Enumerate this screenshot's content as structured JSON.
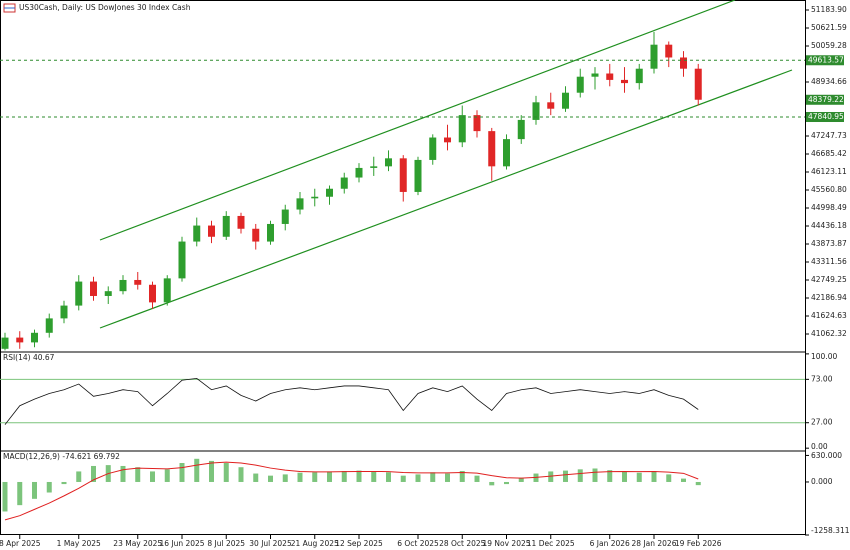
{
  "chart_data": [
    {
      "type": "candlestick",
      "title": "US30Cash, Daily: US DowJones 30 Index Cash",
      "up_color": "#2e9e2e",
      "down_color": "#e02626",
      "axis_color": "#2e8b2e",
      "categories": [
        null,
        "8 Apr 2025",
        null,
        null,
        null,
        "1 May 2025",
        null,
        null,
        null,
        "23 May 2025",
        null,
        null,
        "16 Jun 2025",
        null,
        null,
        "8 Jul 2025",
        null,
        null,
        "30 Jul 2025",
        null,
        null,
        "21 Aug 2025",
        null,
        null,
        "12 Sep 2025",
        null,
        null,
        null,
        "6 Oct 2025",
        null,
        null,
        "28 Oct 2025",
        null,
        null,
        "19 Nov 2025",
        null,
        null,
        "11 Dec 2025",
        null,
        null,
        null,
        "6 Jan 2026",
        null,
        null,
        "28 Jan 2026",
        null,
        null,
        "19 Feb 2026"
      ],
      "open": [
        40600,
        40950,
        40800,
        41100,
        41550,
        41950,
        42700,
        42250,
        42400,
        42750,
        42600,
        42050,
        42800,
        43950,
        44450,
        44100,
        44750,
        44350,
        43950,
        44500,
        44950,
        45300,
        45350,
        45600,
        45950,
        46250,
        46300,
        46550,
        45500,
        46500,
        47200,
        47050,
        47900,
        47400,
        46300,
        47150,
        47750,
        48300,
        48100,
        48600,
        49100,
        49200,
        49000,
        48900,
        49350,
        50100,
        49700,
        49350
      ],
      "high": [
        41100,
        41150,
        41200,
        41700,
        42100,
        42900,
        42850,
        42550,
        42900,
        43000,
        42700,
        42900,
        44100,
        44700,
        44600,
        44900,
        44850,
        44500,
        44600,
        45100,
        45500,
        45600,
        45700,
        46100,
        46400,
        46600,
        46800,
        46650,
        46600,
        47300,
        47600,
        48200,
        48050,
        47500,
        47300,
        47900,
        48500,
        48600,
        48800,
        49350,
        49400,
        49500,
        49400,
        49500,
        50500,
        50200,
        49900,
        49500
      ],
      "low": [
        40550,
        40600,
        40650,
        40950,
        41400,
        41800,
        42100,
        42000,
        42300,
        42450,
        41850,
        41950,
        42700,
        43800,
        43900,
        44000,
        44200,
        43700,
        43850,
        44300,
        44800,
        45050,
        45100,
        45450,
        45800,
        46000,
        46150,
        45200,
        45400,
        46350,
        46800,
        46900,
        47200,
        45850,
        46200,
        47000,
        47600,
        47900,
        48000,
        48450,
        48700,
        48800,
        48600,
        48700,
        49200,
        49400,
        49100,
        48200
      ],
      "close": [
        40950,
        40800,
        41100,
        41550,
        41950,
        42700,
        42250,
        42400,
        42750,
        42600,
        42050,
        42800,
        43950,
        44450,
        44100,
        44750,
        44350,
        43950,
        44500,
        44950,
        45300,
        45350,
        45600,
        45950,
        46250,
        46300,
        46550,
        45500,
        46500,
        47200,
        47050,
        47900,
        47400,
        46300,
        47150,
        47750,
        48300,
        48100,
        48600,
        49100,
        49200,
        49000,
        48900,
        49350,
        50100,
        49700,
        49350,
        48380
      ],
      "ylim": [
        40500,
        51496
      ],
      "yticks": [
        {
          "value": 51183.9,
          "label": "51183.90"
        },
        {
          "value": 50621.59,
          "label": "50621.59"
        },
        {
          "value": 50059.28,
          "label": "50059.28"
        },
        {
          "value": 48934.66,
          "label": "48934.66"
        },
        {
          "value": 47247.73,
          "label": "47247.73"
        },
        {
          "value": 46685.42,
          "label": "46685.42"
        },
        {
          "value": 46123.11,
          "label": "46123.11"
        },
        {
          "value": 45560.8,
          "label": "45560.80"
        },
        {
          "value": 44998.49,
          "label": "44998.49"
        },
        {
          "value": 44436.18,
          "label": "44436.18"
        },
        {
          "value": 43873.87,
          "label": "43873.87"
        },
        {
          "value": 43311.56,
          "label": "43311.56"
        },
        {
          "value": 42749.25,
          "label": "42749.25"
        },
        {
          "value": 42186.94,
          "label": "42186.94"
        },
        {
          "value": 41624.63,
          "label": "41624.63"
        },
        {
          "value": 41062.32,
          "label": "41062.32"
        }
      ],
      "price_labels": [
        {
          "value": 49613.57,
          "label": "49613.57",
          "line": true
        },
        {
          "value": 48379.22,
          "label": "48379.22",
          "line": false
        },
        {
          "value": 47840.95,
          "label": "47840.95",
          "line": true
        }
      ]
    },
    {
      "type": "line",
      "title": "RSI(14) 40.67",
      "color": "#111111",
      "level_color": "#7cc47c",
      "values": [
        25,
        45,
        52,
        58,
        62,
        68,
        55,
        58,
        62,
        60,
        45,
        58,
        72,
        74,
        62,
        66,
        56,
        50,
        58,
        62,
        64,
        62,
        64,
        66,
        66,
        64,
        62,
        40,
        58,
        64,
        60,
        66,
        52,
        40,
        58,
        62,
        64,
        58,
        60,
        62,
        60,
        58,
        60,
        58,
        62,
        56,
        52,
        41
      ],
      "ylim": [
        -3,
        102
      ],
      "yticks": [
        {
          "value": 100,
          "label": "100.00"
        },
        {
          "value": 73,
          "label": "73.00"
        },
        {
          "value": 27,
          "label": "27.00"
        },
        {
          "value": 0,
          "label": "0.00"
        }
      ]
    },
    {
      "type": "macd",
      "title": "MACD(12,26,9) -74.621 69.792",
      "series": [
        {
          "type": "bar",
          "color": "#7cc47c",
          "values": [
            -700,
            -550,
            -400,
            -250,
            -50,
            250,
            380,
            400,
            380,
            350,
            250,
            300,
            450,
            550,
            500,
            450,
            350,
            200,
            150,
            180,
            220,
            230,
            250,
            260,
            270,
            240,
            230,
            150,
            180,
            230,
            200,
            260,
            150,
            -80,
            -50,
            100,
            200,
            250,
            270,
            300,
            320,
            280,
            250,
            220,
            260,
            180,
            80,
            -75
          ]
        },
        {
          "type": "line",
          "color": "#e02020",
          "values": [
            -900,
            -800,
            -650,
            -500,
            -330,
            -150,
            50,
            200,
            290,
            330,
            320,
            310,
            340,
            400,
            450,
            470,
            450,
            400,
            330,
            280,
            250,
            240,
            240,
            245,
            250,
            250,
            245,
            225,
            215,
            215,
            215,
            225,
            210,
            150,
            100,
            90,
            110,
            140,
            170,
            200,
            230,
            245,
            250,
            245,
            250,
            235,
            205,
            70
          ]
        }
      ],
      "ylim": [
        -1258.311,
        735
      ],
      "yticks": [
        {
          "value": 630,
          "label": "630.000"
        },
        {
          "value": 0,
          "label": "0.000"
        },
        {
          "value": -1258.311,
          "label": "-1258.311"
        }
      ]
    }
  ]
}
